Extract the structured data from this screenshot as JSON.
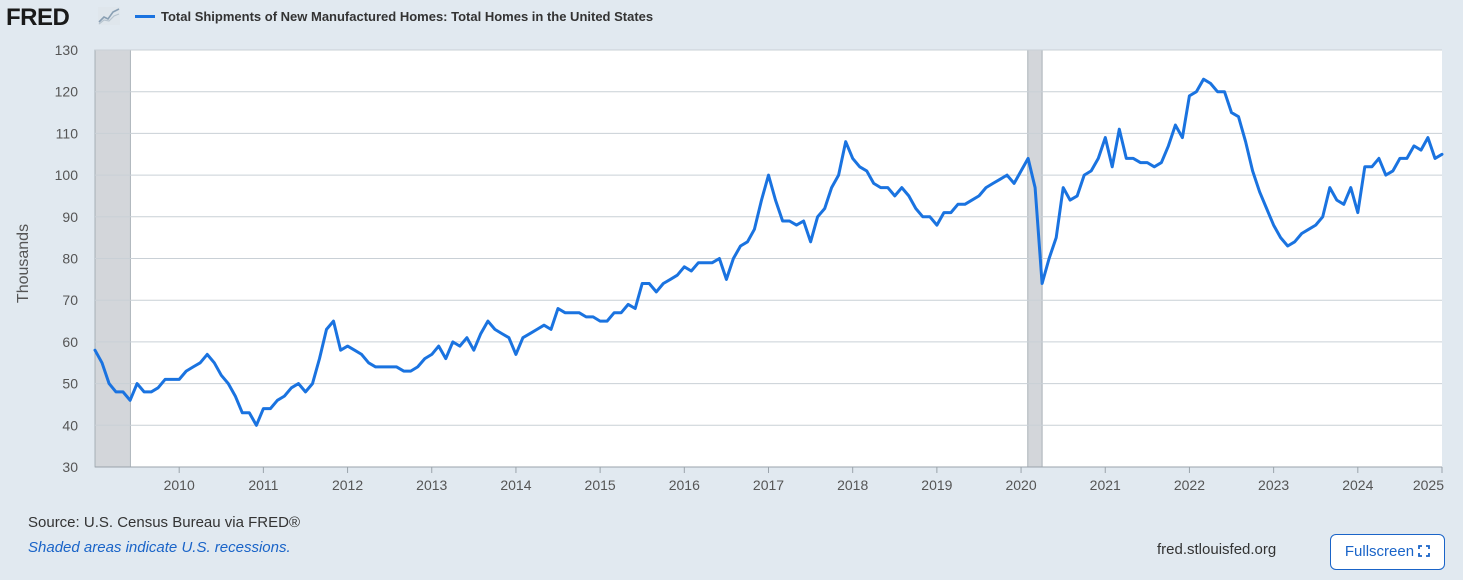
{
  "header": {
    "logo_text": "FRED",
    "legend_label": "Total Shipments of New Manufactured Homes: Total Homes in the United States",
    "series_color": "#1a73e0"
  },
  "footer": {
    "source": "Source: U.S. Census Bureau via FRED®",
    "recession_note": "Shaded areas indicate U.S. recessions.",
    "url": "fred.stlouisfed.org",
    "fullscreen_label": "Fullscreen"
  },
  "chart_data": {
    "type": "line",
    "ylabel": "Thousands",
    "ylim": [
      30,
      130
    ],
    "yticks": [
      30,
      40,
      50,
      60,
      70,
      80,
      90,
      100,
      110,
      120,
      130
    ],
    "xlim": [
      2009.0,
      2025.0
    ],
    "xticks": [
      2010,
      2011,
      2012,
      2013,
      2014,
      2015,
      2016,
      2017,
      2018,
      2019,
      2020,
      2021,
      2022,
      2023,
      2024,
      2025
    ],
    "grid": true,
    "legend_placement": "top-left",
    "recessions": [
      [
        2009.0,
        2009.42
      ],
      [
        2020.08,
        2020.25
      ]
    ],
    "recession_color": "#d3d6da",
    "series": [
      {
        "name": "Total Shipments of New Manufactured Homes: Total Homes in the United States",
        "color": "#1a73e0",
        "x": [
          2009.0,
          2009.083,
          2009.167,
          2009.25,
          2009.333,
          2009.417,
          2009.5,
          2009.583,
          2009.667,
          2009.75,
          2009.833,
          2009.917,
          2010.0,
          2010.083,
          2010.167,
          2010.25,
          2010.333,
          2010.417,
          2010.5,
          2010.583,
          2010.667,
          2010.75,
          2010.833,
          2010.917,
          2011.0,
          2011.083,
          2011.167,
          2011.25,
          2011.333,
          2011.417,
          2011.5,
          2011.583,
          2011.667,
          2011.75,
          2011.833,
          2011.917,
          2012.0,
          2012.083,
          2012.167,
          2012.25,
          2012.333,
          2012.417,
          2012.5,
          2012.583,
          2012.667,
          2012.75,
          2012.833,
          2012.917,
          2013.0,
          2013.083,
          2013.167,
          2013.25,
          2013.333,
          2013.417,
          2013.5,
          2013.583,
          2013.667,
          2013.75,
          2013.833,
          2013.917,
          2014.0,
          2014.083,
          2014.167,
          2014.25,
          2014.333,
          2014.417,
          2014.5,
          2014.583,
          2014.667,
          2014.75,
          2014.833,
          2014.917,
          2015.0,
          2015.083,
          2015.167,
          2015.25,
          2015.333,
          2015.417,
          2015.5,
          2015.583,
          2015.667,
          2015.75,
          2015.833,
          2015.917,
          2016.0,
          2016.083,
          2016.167,
          2016.25,
          2016.333,
          2016.417,
          2016.5,
          2016.583,
          2016.667,
          2016.75,
          2016.833,
          2016.917,
          2017.0,
          2017.083,
          2017.167,
          2017.25,
          2017.333,
          2017.417,
          2017.5,
          2017.583,
          2017.667,
          2017.75,
          2017.833,
          2017.917,
          2018.0,
          2018.083,
          2018.167,
          2018.25,
          2018.333,
          2018.417,
          2018.5,
          2018.583,
          2018.667,
          2018.75,
          2018.833,
          2018.917,
          2019.0,
          2019.083,
          2019.167,
          2019.25,
          2019.333,
          2019.417,
          2019.5,
          2019.583,
          2019.667,
          2019.75,
          2019.833,
          2019.917,
          2020.0,
          2020.083,
          2020.167,
          2020.25,
          2020.333,
          2020.417,
          2020.5,
          2020.583,
          2020.667,
          2020.75,
          2020.833,
          2020.917,
          2021.0,
          2021.083,
          2021.167,
          2021.25,
          2021.333,
          2021.417,
          2021.5,
          2021.583,
          2021.667,
          2021.75,
          2021.833,
          2021.917,
          2022.0,
          2022.083,
          2022.167,
          2022.25,
          2022.333,
          2022.417,
          2022.5,
          2022.583,
          2022.667,
          2022.75,
          2022.833,
          2022.917,
          2023.0,
          2023.083,
          2023.167,
          2023.25,
          2023.333,
          2023.417,
          2023.5,
          2023.583,
          2023.667,
          2023.75,
          2023.833,
          2023.917,
          2024.0,
          2024.083,
          2024.167,
          2024.25,
          2024.333,
          2024.417,
          2024.5,
          2024.583,
          2024.667,
          2024.75,
          2024.833,
          2024.917,
          2025.0
        ],
        "values": [
          58,
          55,
          50,
          48,
          48,
          46,
          50,
          48,
          48,
          49,
          51,
          51,
          51,
          53,
          54,
          55,
          57,
          55,
          52,
          50,
          47,
          43,
          43,
          40,
          44,
          44,
          46,
          47,
          49,
          50,
          48,
          50,
          56,
          63,
          65,
          58,
          59,
          58,
          57,
          55,
          54,
          54,
          54,
          54,
          53,
          53,
          54,
          56,
          57,
          59,
          56,
          60,
          59,
          61,
          58,
          62,
          65,
          63,
          62,
          61,
          57,
          61,
          62,
          63,
          64,
          63,
          68,
          67,
          67,
          67,
          66,
          66,
          65,
          65,
          67,
          67,
          69,
          68,
          74,
          74,
          72,
          74,
          75,
          76,
          78,
          77,
          79,
          79,
          79,
          80,
          75,
          80,
          83,
          84,
          87,
          94,
          100,
          94,
          89,
          89,
          88,
          89,
          84,
          90,
          92,
          97,
          100,
          108,
          104,
          102,
          101,
          98,
          97,
          97,
          95,
          97,
          95,
          92,
          90,
          90,
          88,
          91,
          91,
          93,
          93,
          94,
          95,
          97,
          98,
          99,
          100,
          98,
          101,
          104,
          97,
          74,
          80,
          85,
          97,
          94,
          95,
          100,
          101,
          104,
          109,
          102,
          111,
          104,
          104,
          103,
          103,
          102,
          103,
          107,
          112,
          109,
          119,
          120,
          123,
          122,
          120,
          120,
          115,
          114,
          108,
          101,
          96,
          92,
          88,
          85,
          83,
          84,
          86,
          87,
          88,
          90,
          97,
          94,
          93,
          97,
          91,
          102,
          102,
          104,
          100,
          101,
          104,
          104,
          107,
          106,
          109,
          104,
          105
        ]
      }
    ]
  }
}
